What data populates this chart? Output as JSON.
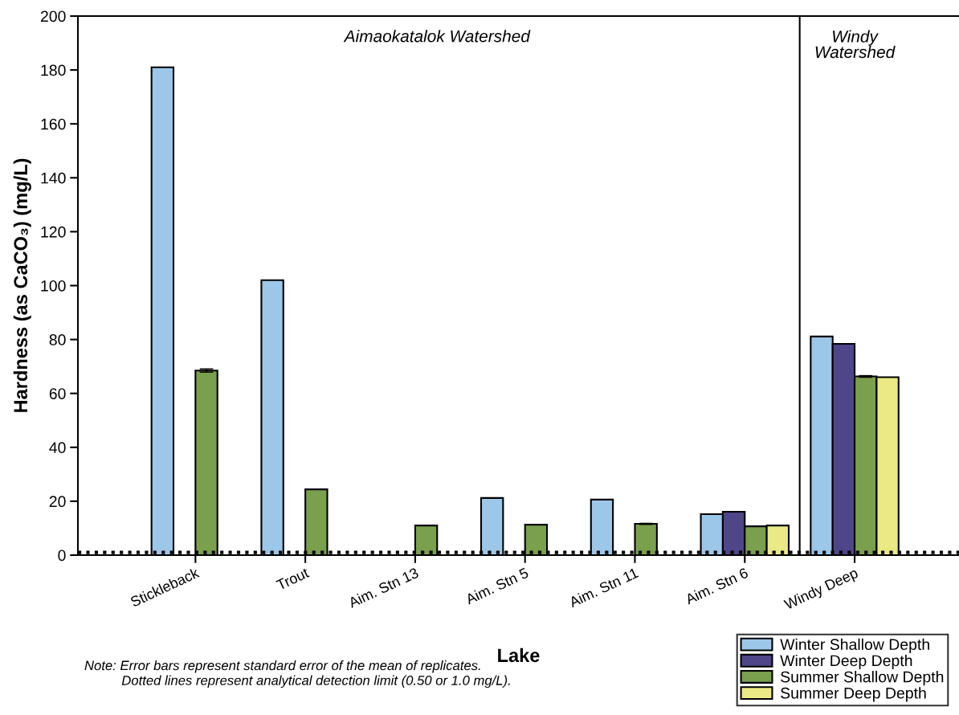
{
  "chart_data": {
    "type": "bar",
    "xlabel": "Lake",
    "ylabel": "Hardness (as CaCO₃) (mg/L)",
    "categories": [
      "Stickleback",
      "Trout",
      "Aim. Stn 13",
      "Aim. Stn 5",
      "Aim. Stn 11",
      "Aim. Stn 6",
      "Windy Deep"
    ],
    "series": [
      {
        "name": "Winter Shallow Depth",
        "color": "#9dc7e9",
        "values": [
          181,
          102,
          null,
          21.2,
          20.6,
          15.2,
          81.1
        ]
      },
      {
        "name": "Winter Deep Depth",
        "color": "#4f4689",
        "values": [
          null,
          null,
          null,
          null,
          null,
          16.1,
          78.4
        ]
      },
      {
        "name": "Summer Shallow Depth",
        "color": "#7a9f4d",
        "values": [
          68.5,
          24.4,
          11.0,
          11.3,
          11.6,
          10.7,
          66.3
        ],
        "errors": [
          0.6,
          null,
          null,
          null,
          0.2,
          null,
          0.3
        ]
      },
      {
        "name": "Summer Deep Depth",
        "color": "#ebe985",
        "values": [
          null,
          null,
          null,
          null,
          null,
          11.0,
          66.0
        ]
      }
    ],
    "ylim": [
      0,
      200
    ],
    "yticks": [
      0,
      20,
      40,
      60,
      80,
      100,
      120,
      140,
      160,
      180,
      200
    ],
    "ref_lines": [
      {
        "axis": "y",
        "value": 1.0,
        "color": "#000000",
        "line_style": "dotted"
      }
    ],
    "annotations": [
      "Aimaokatalok Watershed",
      "Windy\nWatershed",
      "Note: Error bars represent standard error of the mean of replicates.\n          Dotted lines represent analytical detection limit (0.50 or 1.0 mg/L)."
    ],
    "legend": "bottom right",
    "grid": false
  }
}
